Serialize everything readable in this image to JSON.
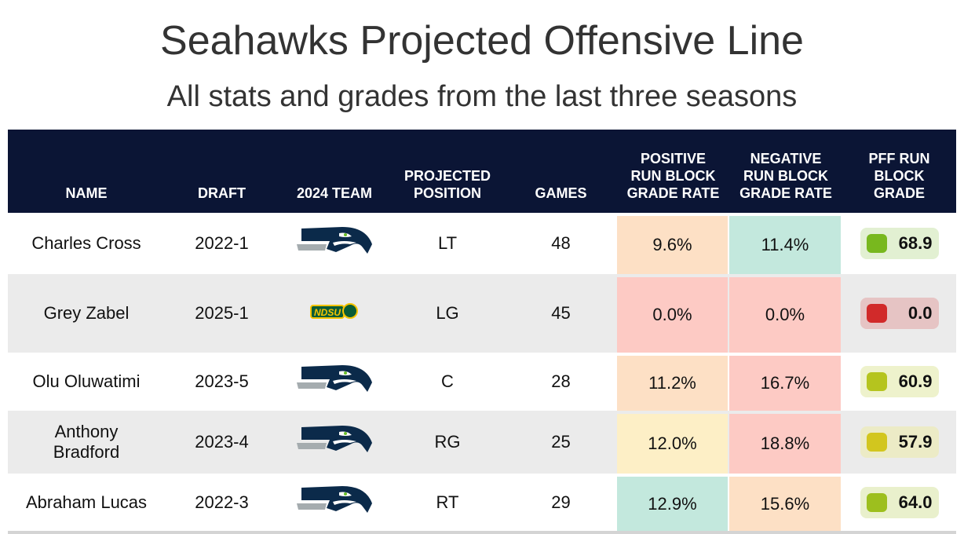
{
  "title": "Seahawks Projected Offensive Line",
  "subtitle": "All stats and grades from the last three seasons",
  "headers": [
    "NAME",
    "DRAFT",
    "2024 TEAM",
    "PROJECTED POSITION",
    "GAMES",
    "POSITIVE RUN BLOCK GRADE RATE",
    "NEGATIVE RUN BLOCK GRADE RATE",
    "PFF RUN BLOCK GRADE"
  ],
  "rows": [
    {
      "name": "Charles Cross",
      "draft": "2022-1",
      "team": "seahawks-logo",
      "position": "LT",
      "games": "48",
      "pos_rate": "9.6%",
      "neg_rate": "11.4%",
      "grade": "68.9",
      "pos_color": "#fde0c5",
      "neg_color": "#c3e8dd",
      "grade_color": "#78b81e",
      "grade_bg": "#e2f0d2"
    },
    {
      "name": "Grey Zabel",
      "draft": "2025-1",
      "team": "NDSU",
      "position": "LG",
      "games": "45",
      "pos_rate": "0.0%",
      "neg_rate": "0.0%",
      "grade": "0.0",
      "pos_color": "#fdcac4",
      "neg_color": "#fdcac4",
      "grade_color": "#d12a2a",
      "grade_bg": "#e6c4c4"
    },
    {
      "name": "Olu Oluwatimi",
      "draft": "2023-5",
      "team": "seahawks-logo",
      "position": "C",
      "games": "28",
      "pos_rate": "11.2%",
      "neg_rate": "16.7%",
      "grade": "60.9",
      "pos_color": "#fde0c5",
      "neg_color": "#fdcac4",
      "grade_color": "#b5c41e",
      "grade_bg": "#eef2cc"
    },
    {
      "name": "Anthony Bradford",
      "draft": "2023-4",
      "team": "seahawks-logo",
      "position": "RG",
      "games": "25",
      "pos_rate": "12.0%",
      "neg_rate": "18.8%",
      "grade": "57.9",
      "pos_color": "#fdefc6",
      "neg_color": "#fdcac4",
      "grade_color": "#d2c61e",
      "grade_bg": "#ecebc6"
    },
    {
      "name": "Abraham Lucas",
      "draft": "2022-3",
      "team": "seahawks-logo",
      "position": "RT",
      "games": "29",
      "pos_rate": "12.9%",
      "neg_rate": "15.6%",
      "grade": "64.0",
      "pos_color": "#c3e8dd",
      "neg_color": "#fde0c5",
      "grade_color": "#9dbf1e",
      "grade_bg": "#e9f0cc"
    }
  ]
}
